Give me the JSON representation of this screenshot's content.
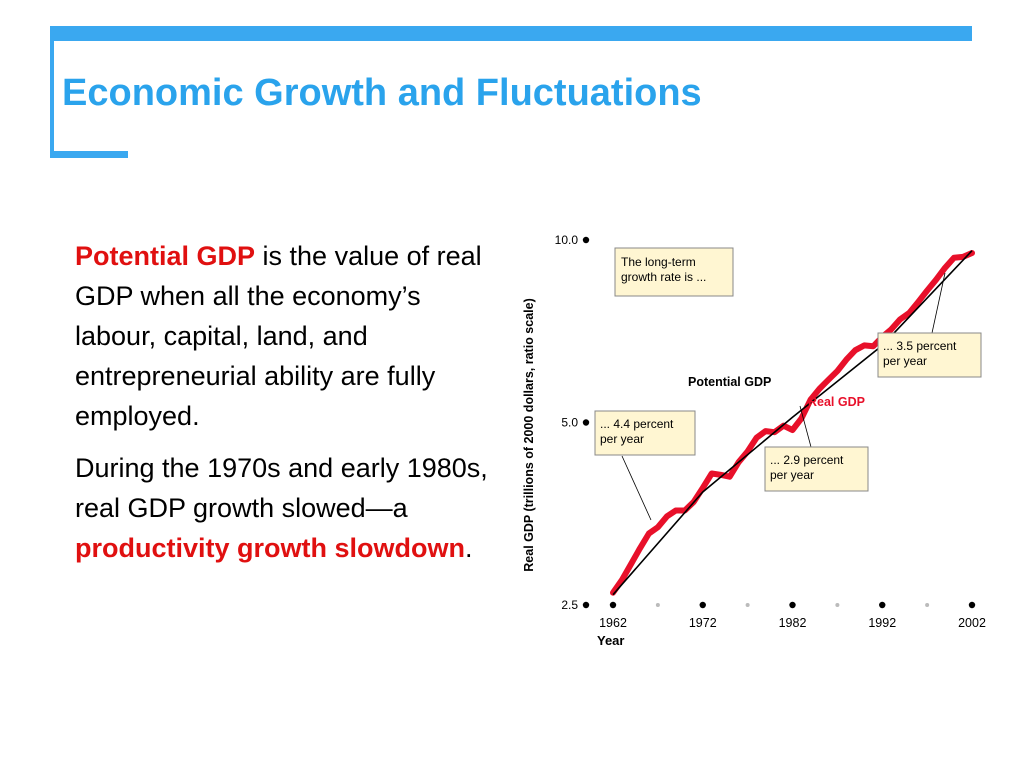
{
  "slide": {
    "title": "Economic Growth and Fluctuations",
    "p1": {
      "term": "Potential GDP",
      "rest": " is the value of real GDP when all the economy’s labour, capital, land, and entrepreneurial ability are fully employed."
    },
    "p2": {
      "lead": "During the 1970s and early 1980s, real GDP growth slowed—a ",
      "term": "productivity growth slowdown",
      "tail": "."
    }
  },
  "colors": {
    "accent": "#3aa8f0",
    "title": "#2aa3ec",
    "highlight": "#e01010",
    "real_gdp": "#e8102a",
    "potential_gdp": "#000000",
    "callout_fill": "#fff6d2"
  },
  "chart_data": {
    "type": "line",
    "yscale": "log",
    "ylabel": "Real GDP (trillions of 2000 dollars, ratio scale)",
    "xlabel": "Year",
    "xlim": [
      1961,
      2003
    ],
    "ylim": [
      2.5,
      10.0
    ],
    "yticks": [
      2.5,
      5.0,
      10.0
    ],
    "ytick_labels": [
      "2.5",
      "5.0",
      "10.0"
    ],
    "xticks": [
      1962,
      1972,
      1982,
      1992,
      2002
    ],
    "xtick_labels": [
      "1962",
      "1972",
      "1982",
      "1992",
      "2002"
    ],
    "minor_xticks": [
      1967,
      1977,
      1987,
      1997
    ],
    "grid": false,
    "series": [
      {
        "name": "Real GDP",
        "x": [
          1962,
          1963,
          1964,
          1965,
          1966,
          1967,
          1968,
          1969,
          1970,
          1971,
          1972,
          1973,
          1974,
          1975,
          1976,
          1977,
          1978,
          1979,
          1980,
          1981,
          1982,
          1983,
          1984,
          1985,
          1986,
          1987,
          1988,
          1989,
          1990,
          1991,
          1992,
          1993,
          1994,
          1995,
          1996,
          1997,
          1998,
          1999,
          2000,
          2001,
          2002
        ],
        "values": [
          2.62,
          2.75,
          2.92,
          3.1,
          3.28,
          3.36,
          3.5,
          3.58,
          3.58,
          3.7,
          3.9,
          4.12,
          4.1,
          4.07,
          4.3,
          4.48,
          4.72,
          4.84,
          4.82,
          4.94,
          4.86,
          5.08,
          5.45,
          5.68,
          5.88,
          6.08,
          6.35,
          6.58,
          6.7,
          6.68,
          6.92,
          7.12,
          7.4,
          7.58,
          7.9,
          8.25,
          8.6,
          9.0,
          9.35,
          9.38,
          9.52
        ]
      },
      {
        "name": "Potential GDP",
        "x": [
          1962,
          1972,
          1982,
          1992,
          2002
        ],
        "values": [
          2.6,
          3.84,
          5.1,
          6.7,
          9.6
        ]
      }
    ],
    "legend_labels": [
      "Potential GDP",
      "Real GDP"
    ],
    "annotations": [
      "The long-term growth rate is ...",
      "... 4.4 percent per year",
      "... 2.9 percent per year",
      "... 3.5 percent per year"
    ]
  }
}
